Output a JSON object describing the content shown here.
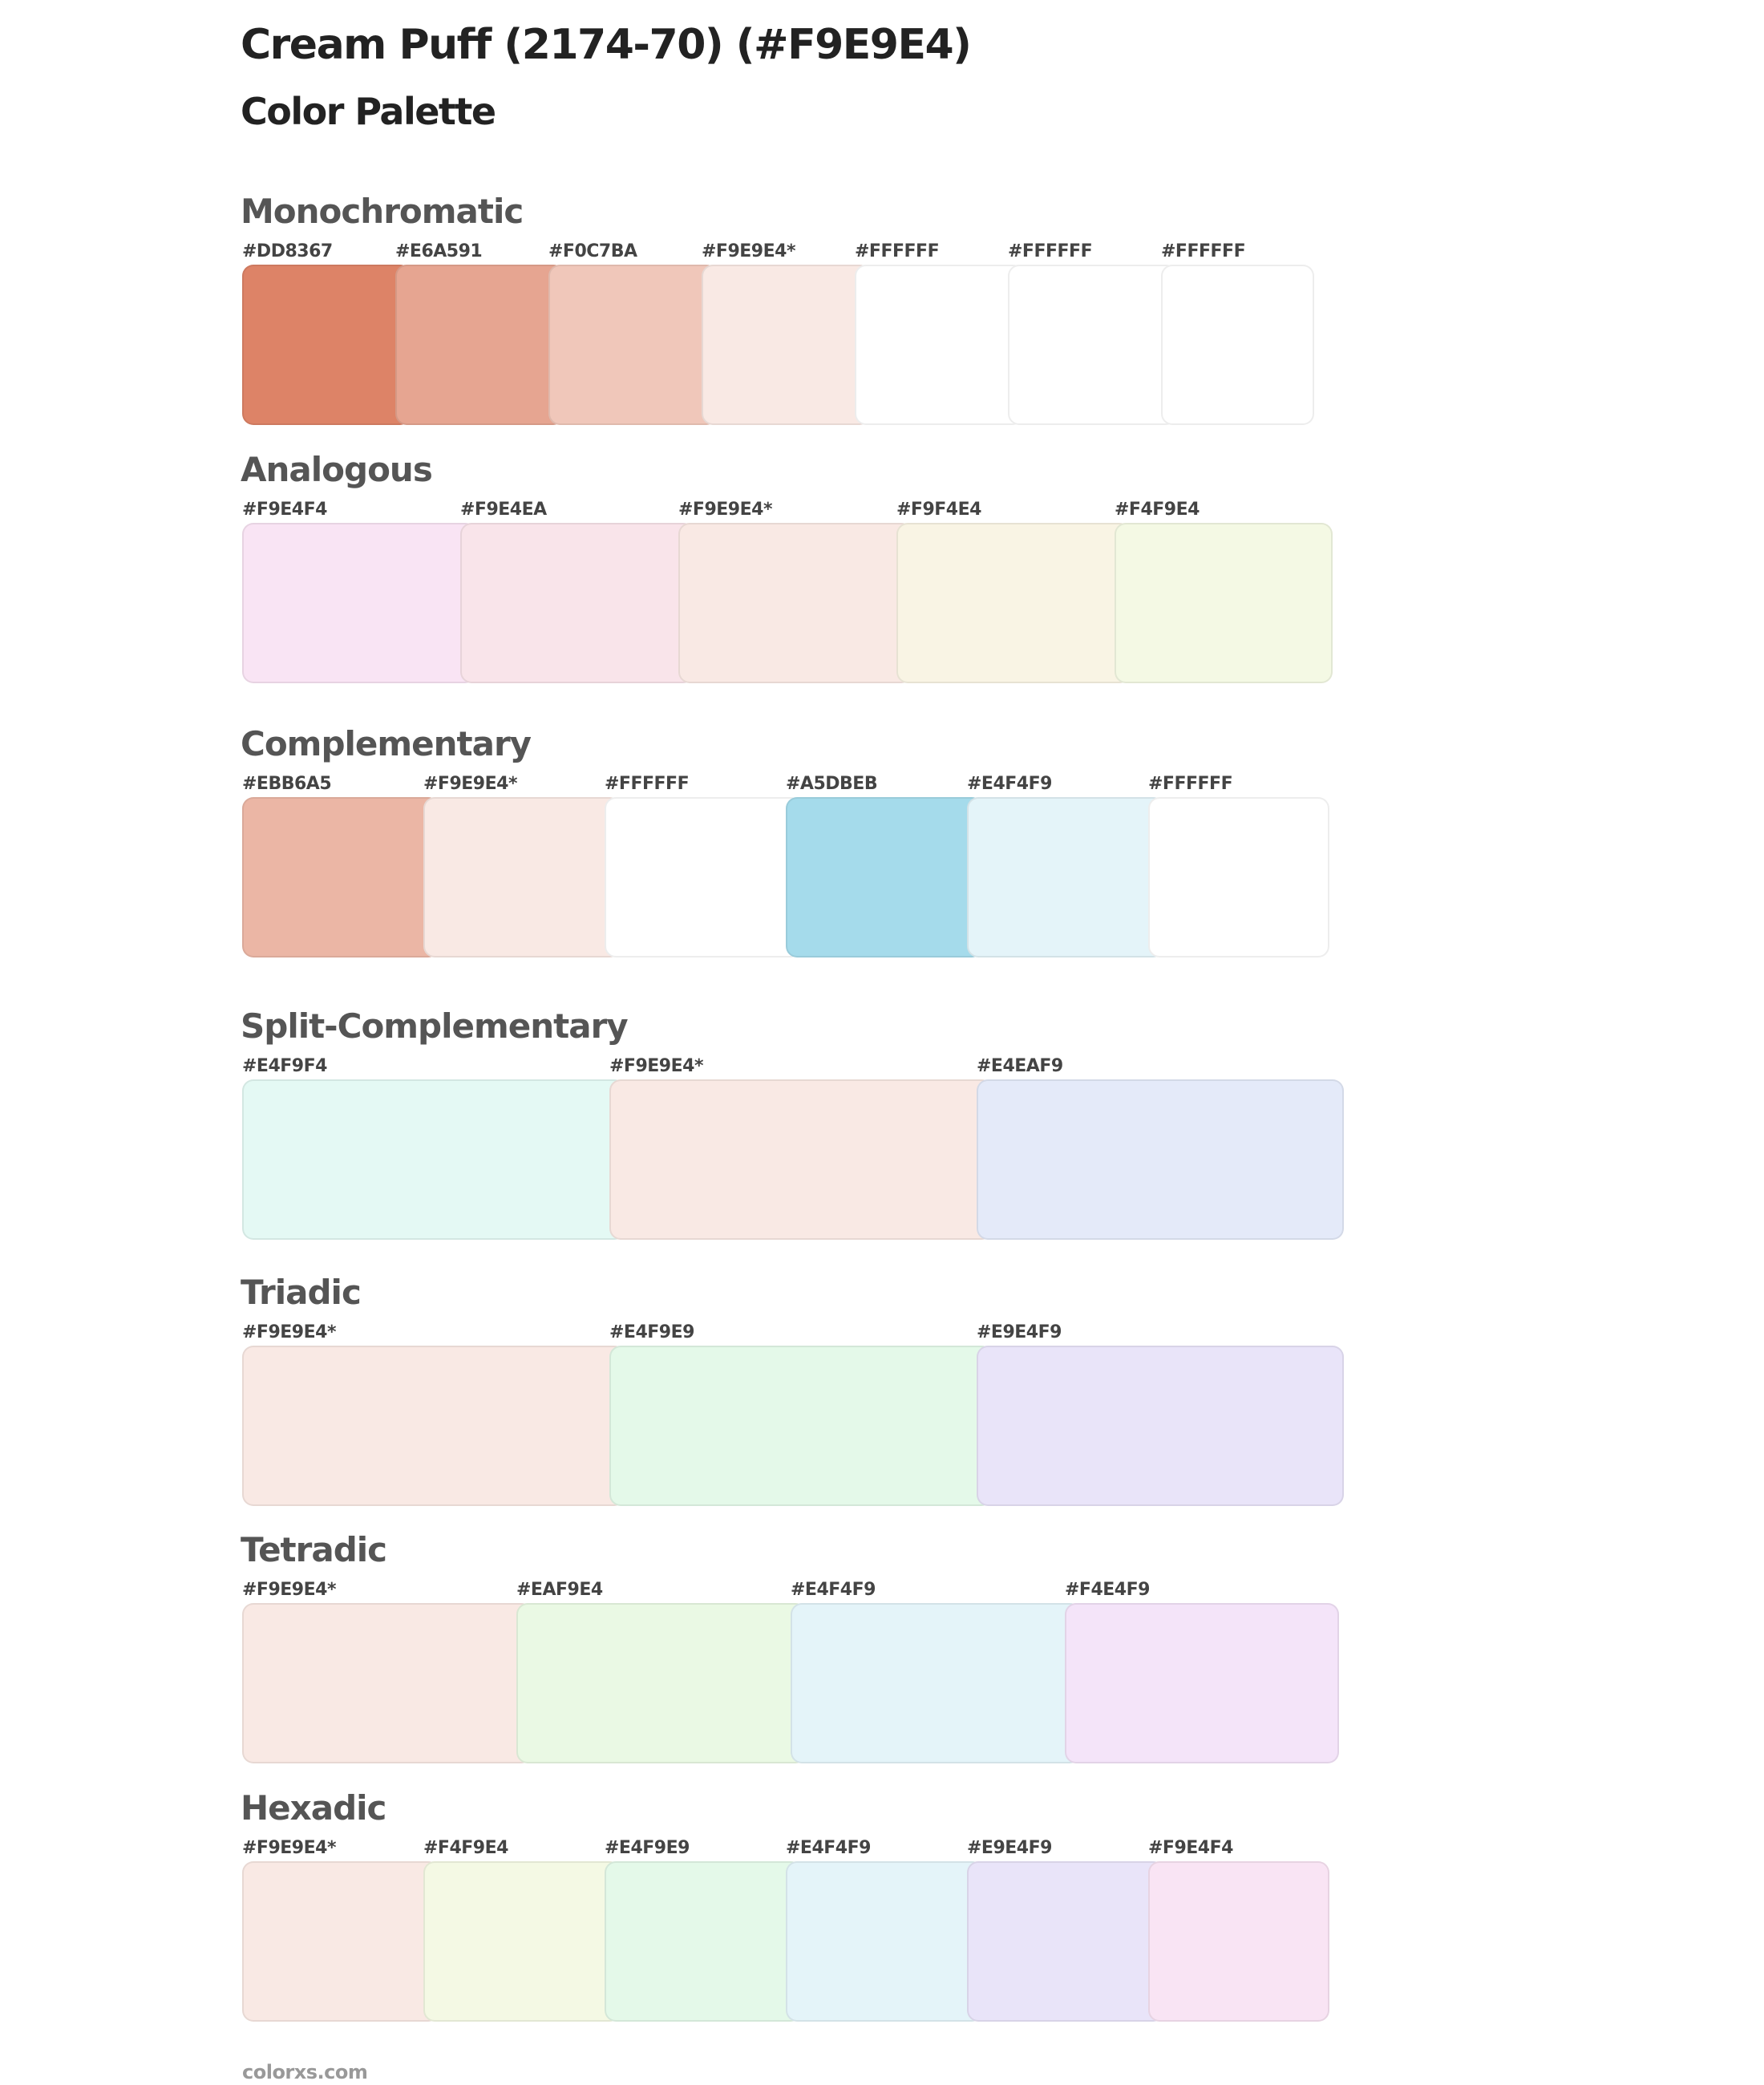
{
  "header": {
    "title": "Cream Puff (2174-70) (#F9E9E4)",
    "subtitle": "Color Palette"
  },
  "sections": [
    {
      "name": "Monochromatic",
      "colors": [
        {
          "label": "#DD8367",
          "hex": "#DD8367"
        },
        {
          "label": "#E6A591",
          "hex": "#E6A591"
        },
        {
          "label": "#F0C7BA",
          "hex": "#F0C7BA"
        },
        {
          "label": "#F9E9E4*",
          "hex": "#F9E9E4"
        },
        {
          "label": "#FFFFFF",
          "hex": "#FFFFFF"
        },
        {
          "label": "#FFFFFF",
          "hex": "#FFFFFF"
        },
        {
          "label": "#FFFFFF",
          "hex": "#FFFFFF"
        }
      ]
    },
    {
      "name": "Analogous",
      "colors": [
        {
          "label": "#F9E4F4",
          "hex": "#F9E4F4"
        },
        {
          "label": "#F9E4EA",
          "hex": "#F9E4EA"
        },
        {
          "label": "#F9E9E4*",
          "hex": "#F9E9E4"
        },
        {
          "label": "#F9F4E4",
          "hex": "#F9F4E4"
        },
        {
          "label": "#F4F9E4",
          "hex": "#F4F9E4"
        }
      ]
    },
    {
      "name": "Complementary",
      "colors": [
        {
          "label": "#EBB6A5",
          "hex": "#EBB6A5"
        },
        {
          "label": "#F9E9E4*",
          "hex": "#F9E9E4"
        },
        {
          "label": "#FFFFFF",
          "hex": "#FFFFFF"
        },
        {
          "label": "#A5DBEB",
          "hex": "#A5DBEB"
        },
        {
          "label": "#E4F4F9",
          "hex": "#E4F4F9"
        },
        {
          "label": "#FFFFFF",
          "hex": "#FFFFFF"
        }
      ]
    },
    {
      "name": "Split-Complementary",
      "colors": [
        {
          "label": "#E4F9F4",
          "hex": "#E4F9F4"
        },
        {
          "label": "#F9E9E4*",
          "hex": "#F9E9E4"
        },
        {
          "label": "#E4EAF9",
          "hex": "#E4EAF9"
        }
      ]
    },
    {
      "name": "Triadic",
      "colors": [
        {
          "label": "#F9E9E4*",
          "hex": "#F9E9E4"
        },
        {
          "label": "#E4F9E9",
          "hex": "#E4F9E9"
        },
        {
          "label": "#E9E4F9",
          "hex": "#E9E4F9"
        }
      ]
    },
    {
      "name": "Tetradic",
      "colors": [
        {
          "label": "#F9E9E4*",
          "hex": "#F9E9E4"
        },
        {
          "label": "#EAF9E4",
          "hex": "#EAF9E4"
        },
        {
          "label": "#E4F4F9",
          "hex": "#E4F4F9"
        },
        {
          "label": "#F4E4F9",
          "hex": "#F4E4F9"
        }
      ]
    },
    {
      "name": "Hexadic",
      "colors": [
        {
          "label": "#F9E9E4*",
          "hex": "#F9E9E4"
        },
        {
          "label": "#F4F9E4",
          "hex": "#F4F9E4"
        },
        {
          "label": "#E4F9E9",
          "hex": "#E4F9E9"
        },
        {
          "label": "#E4F4F9",
          "hex": "#E4F4F9"
        },
        {
          "label": "#E9E4F9",
          "hex": "#E9E4F9"
        },
        {
          "label": "#F9E4F4",
          "hex": "#F9E4F4"
        }
      ]
    }
  ],
  "footer": {
    "site": "colorxs.com"
  }
}
